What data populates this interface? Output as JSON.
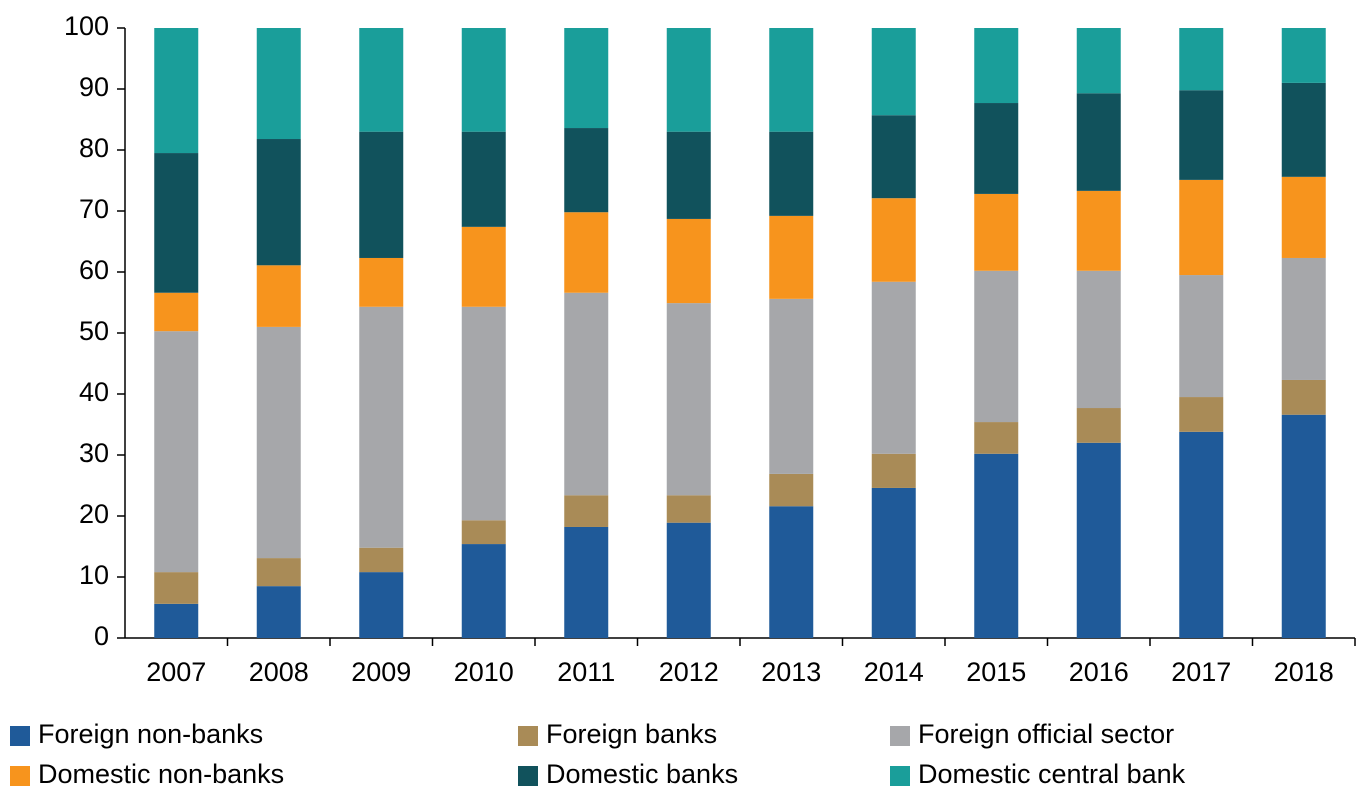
{
  "chart_data": {
    "type": "stacked_bar",
    "categories": [
      "2007",
      "2008",
      "2009",
      "2010",
      "2011",
      "2012",
      "2013",
      "2014",
      "2015",
      "2016",
      "2017",
      "2018"
    ],
    "series": [
      {
        "name": "Foreign non-banks",
        "color": "#1f5a99",
        "values": [
          5.6,
          8.5,
          10.8,
          15.4,
          18.2,
          18.9,
          21.6,
          24.6,
          30.2,
          32.0,
          33.8,
          36.6
        ]
      },
      {
        "name": "Foreign banks",
        "color": "#a98b57",
        "values": [
          5.2,
          4.6,
          4.0,
          3.9,
          5.2,
          4.5,
          5.3,
          5.6,
          5.2,
          5.7,
          5.7,
          5.7
        ]
      },
      {
        "name": "Foreign official sector",
        "color": "#a6a7aa",
        "values": [
          39.5,
          37.9,
          39.5,
          35.0,
          33.2,
          31.5,
          28.7,
          28.2,
          24.8,
          22.5,
          20.0,
          20.0
        ]
      },
      {
        "name": "Domestic non-banks",
        "color": "#f7941d",
        "values": [
          6.3,
          10.1,
          8.0,
          13.1,
          13.2,
          13.8,
          13.6,
          13.7,
          12.6,
          13.1,
          15.6,
          13.3
        ]
      },
      {
        "name": "Domestic banks",
        "color": "#11525c",
        "values": [
          22.9,
          20.7,
          20.7,
          15.6,
          13.8,
          14.3,
          13.8,
          13.6,
          14.9,
          16.0,
          14.7,
          15.4
        ]
      },
      {
        "name": "Domestic central bank",
        "color": "#1a9e9a",
        "values": [
          20.5,
          18.2,
          17.0,
          17.0,
          16.4,
          17.0,
          17.0,
          14.3,
          12.3,
          10.7,
          10.2,
          9.0
        ]
      }
    ],
    "ylim": [
      0,
      100
    ],
    "yticks": [
      0,
      10,
      20,
      30,
      40,
      50,
      60,
      70,
      80,
      90,
      100
    ],
    "grid": false
  }
}
